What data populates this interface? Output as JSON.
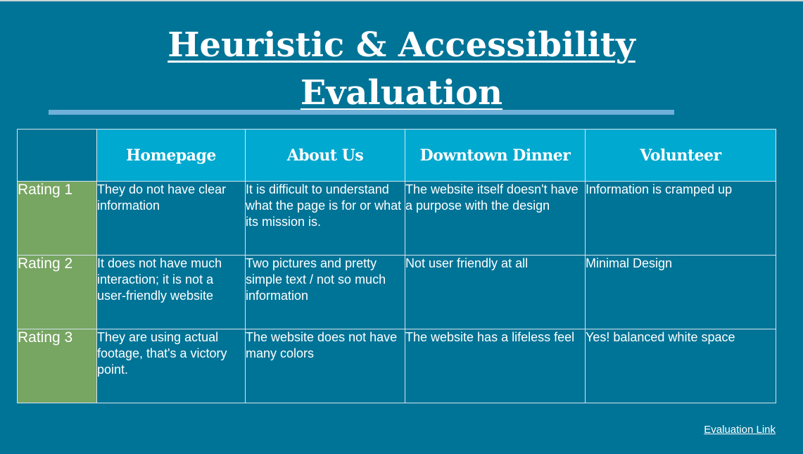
{
  "title": {
    "line1": "Heuristic & Accessibility",
    "line2": "Evaluation"
  },
  "table": {
    "columns": [
      "Homepage",
      "About Us",
      "Downtown Dinner",
      "Volunteer"
    ],
    "rows": [
      {
        "label": "Rating 1",
        "cells": [
          "They do not have clear information",
          "It is difficult to understand what the page is for or what its mission is.",
          "The website itself doesn't have a purpose with the design",
          "Information is cramped up"
        ]
      },
      {
        "label": "Rating 2",
        "cells": [
          "It does not have much interaction; it is not a user-friendly website",
          "Two pictures and pretty simple text / not so much information",
          "Not user friendly at all",
          "Minimal Design"
        ]
      },
      {
        "label": "Rating 3",
        "cells": [
          "They are using actual footage, that's a victory point.",
          "The website does not have many colors",
          "The website has a lifeless feel",
          "Yes! balanced white space"
        ]
      }
    ]
  },
  "link": {
    "label": "Evaluation Link"
  },
  "colors": {
    "background": "#007497",
    "header": "#00a9d0",
    "row_label": "#77a562",
    "accent_bar": "#6fb1d9"
  }
}
